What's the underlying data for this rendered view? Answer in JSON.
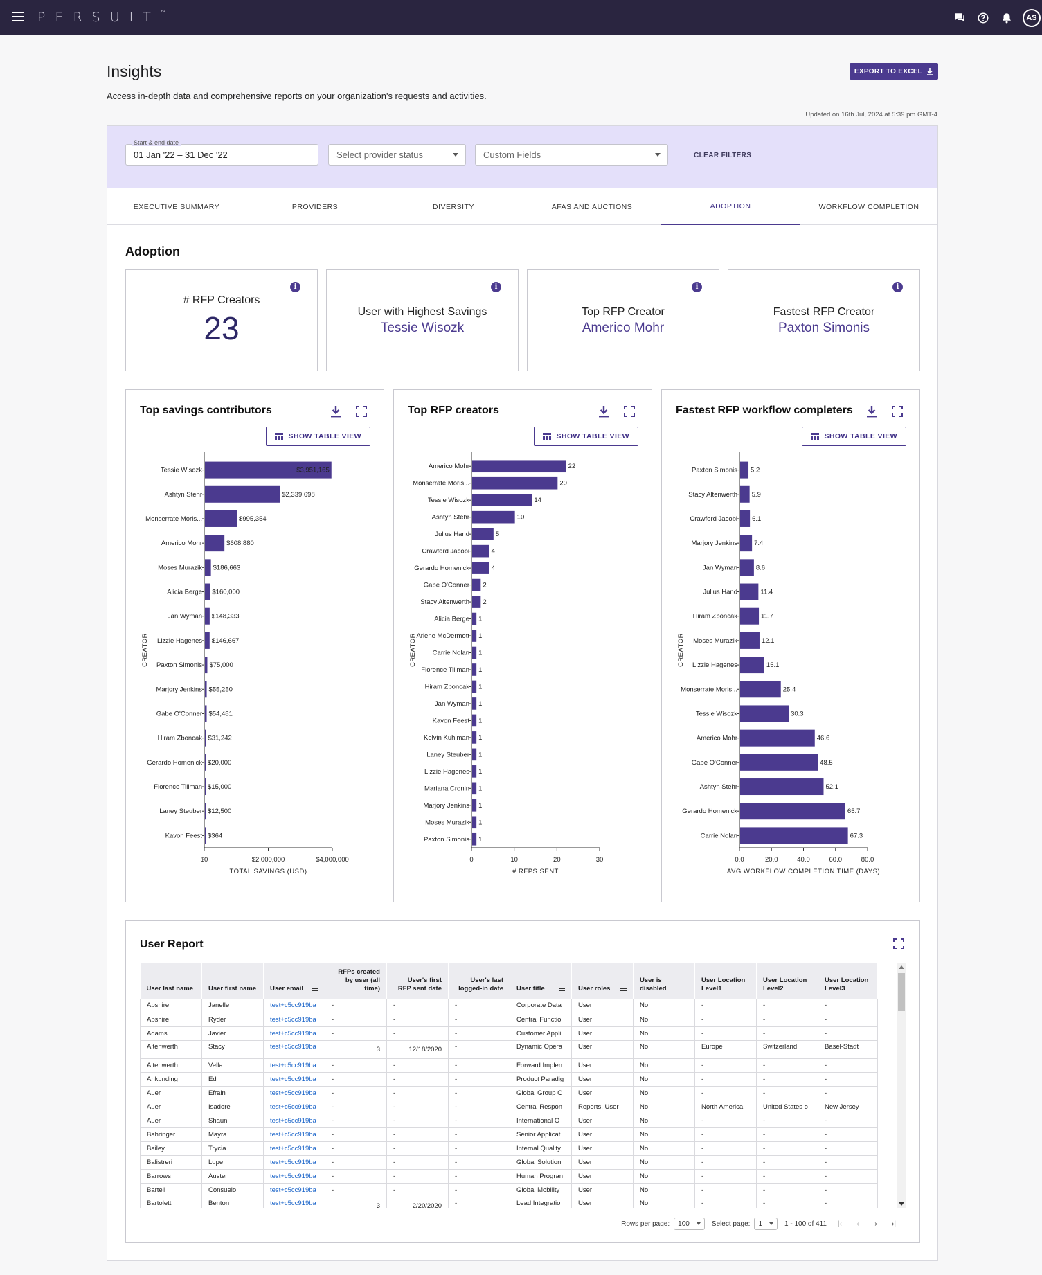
{
  "app": {
    "logo": "PERSUIT",
    "logo_tm": "™",
    "user_initials": "AS"
  },
  "page": {
    "title": "Insights",
    "subtitle": "Access in-depth data and comprehensive reports on your organization's requests and activities.",
    "export_label": "EXPORT TO EXCEL",
    "updated": "Updated on 16th Jul, 2024 at 5:39 pm GMT-4"
  },
  "filters": {
    "date_label": "Start & end date",
    "date_value": "01 Jan '22 – 31 Dec '22",
    "provider_status_placeholder": "Select provider status",
    "custom_fields_placeholder": "Custom Fields",
    "clear_label": "CLEAR FILTERS"
  },
  "tabs": [
    "EXECUTIVE SUMMARY",
    "PROVIDERS",
    "DIVERSITY",
    "AFAS AND AUCTIONS",
    "ADOPTION",
    "WORKFLOW COMPLETION"
  ],
  "active_tab": "ADOPTION",
  "section_title": "Adoption",
  "kpis": {
    "rfp_creators_label": "# RFP Creators",
    "rfp_creators_value": "23",
    "highest_savings_label": "User with Highest Savings",
    "highest_savings_name": "Tessie Wisozk",
    "top_creator_label": "Top RFP Creator",
    "top_creator_name": "Americo Mohr",
    "fastest_creator_label": "Fastest RFP Creator",
    "fastest_creator_name": "Paxton Simonis",
    "info_glyph": "i"
  },
  "show_table_label": "SHOW TABLE VIEW",
  "colors": {
    "accent": "#4b3a8f",
    "nav": "#2a2540",
    "filters_bg": "#e4e0fa"
  },
  "chart_data": [
    {
      "type": "bar",
      "orientation": "horizontal",
      "title": "Top savings contributors",
      "ylabel": "CREATOR",
      "xlabel": "TOTAL SAVINGS (USD)",
      "xlim": [
        0,
        4000000
      ],
      "xticks": [
        "$0",
        "$2,000,000",
        "$4,000,000"
      ],
      "categories": [
        "Tessie Wisozk",
        "Ashtyn Stehr",
        "Monserrate Moris...",
        "Americo Mohr",
        "Moses Murazik",
        "Alicia Berge",
        "Jan Wyman",
        "Lizzie Hagenes",
        "Paxton Simonis",
        "Marjory Jenkins",
        "Gabe O'Conner",
        "Hiram Zboncak",
        "Gerardo Homenick",
        "Florence Tillman",
        "Laney Steuber",
        "Kavon Feest"
      ],
      "values": [
        3951165,
        2339698,
        995354,
        608880,
        186663,
        160000,
        148333,
        146667,
        75000,
        55250,
        54481,
        31242,
        20000,
        15000,
        12500,
        364
      ],
      "labels": [
        "$3,951,165",
        "$2,339,698",
        "$995,354",
        "$608,880",
        "$186,663",
        "$160,000",
        "$148,333",
        "$146,667",
        "$75,000",
        "$55,250",
        "$54,481",
        "$31,242",
        "$20,000",
        "$15,000",
        "$12,500",
        "$364"
      ]
    },
    {
      "type": "bar",
      "orientation": "horizontal",
      "title": "Top RFP creators",
      "ylabel": "CREATOR",
      "xlabel": "# RFPS SENT",
      "xlim": [
        0,
        30
      ],
      "xticks": [
        "0",
        "10",
        "20",
        "30"
      ],
      "categories": [
        "Americo Mohr",
        "Monserrate Moris...",
        "Tessie Wisozk",
        "Ashtyn Stehr",
        "Julius Hand",
        "Crawford Jacobi",
        "Gerardo Homenick",
        "Gabe O'Conner",
        "Stacy Altenwerth",
        "Alicia Berge",
        "Arlene McDermott",
        "Carrie Nolan",
        "Florence Tillman",
        "Hiram Zboncak",
        "Jan Wyman",
        "Kavon Feest",
        "Kelvin Kuhlman",
        "Laney Steuber",
        "Lizzie Hagenes",
        "Mariana Cronin",
        "Marjory Jenkins",
        "Moses Murazik",
        "Paxton Simonis"
      ],
      "values": [
        22,
        20,
        14,
        10,
        5,
        4,
        4,
        2,
        2,
        1,
        1,
        1,
        1,
        1,
        1,
        1,
        1,
        1,
        1,
        1,
        1,
        1,
        1
      ],
      "labels": [
        "22",
        "20",
        "14",
        "10",
        "5",
        "4",
        "4",
        "2",
        "2",
        "1",
        "1",
        "1",
        "1",
        "1",
        "1",
        "1",
        "1",
        "1",
        "1",
        "1",
        "1",
        "1",
        "1"
      ]
    },
    {
      "type": "bar",
      "orientation": "horizontal",
      "title": "Fastest RFP workflow completers",
      "ylabel": "CREATOR",
      "xlabel": "AVG WORKFLOW COMPLETION TIME (DAYS)",
      "xlim": [
        0,
        80
      ],
      "xticks": [
        "0.0",
        "20.0",
        "40.0",
        "60.0",
        "80.0"
      ],
      "categories": [
        "Paxton Simonis",
        "Stacy Altenwerth",
        "Crawford Jacobi",
        "Marjory Jenkins",
        "Jan Wyman",
        "Julius Hand",
        "Hiram Zboncak",
        "Moses Murazik",
        "Lizzie Hagenes",
        "Monserrate Moris...",
        "Tessie Wisozk",
        "Americo Mohr",
        "Gabe O'Conner",
        "Ashtyn Stehr",
        "Gerardo Homenick",
        "Carrie Nolan"
      ],
      "values": [
        5.2,
        5.9,
        6.1,
        7.4,
        8.6,
        11.4,
        11.7,
        12.1,
        15.1,
        25.4,
        30.3,
        46.6,
        48.5,
        52.1,
        65.7,
        67.3
      ],
      "labels": [
        "5.2",
        "5.9",
        "6.1",
        "7.4",
        "8.6",
        "11.4",
        "11.7",
        "12.1",
        "15.1",
        "25.4",
        "30.3",
        "46.6",
        "48.5",
        "52.1",
        "65.7",
        "67.3"
      ]
    }
  ],
  "report": {
    "title": "User Report",
    "columns": [
      "User last name",
      "User first name",
      "User email",
      "RFPs created by user (all time)",
      "User's first RFP sent date",
      "User's last logged-in date",
      "User title",
      "User roles",
      "User is disabled",
      "User Location Level1",
      "User Location Level2",
      "User Location Level3"
    ],
    "rows": [
      [
        "Abshire",
        "Janelle",
        "test+c5cc919ba",
        "-",
        "-",
        "-",
        "Corporate Data",
        "User",
        "No",
        "-",
        "-",
        "-"
      ],
      [
        "Abshire",
        "Ryder",
        "test+c5cc919ba",
        "-",
        "-",
        "-",
        "Central Functio",
        "User",
        "No",
        "-",
        "-",
        "-"
      ],
      [
        "Adams",
        "Javier",
        "test+c5cc919ba",
        "-",
        "-",
        "-",
        "Customer Appli",
        "User",
        "No",
        "-",
        "-",
        "-"
      ],
      [
        "Altenwerth",
        "Stacy",
        "test+c5cc919ba",
        "3",
        "12/18/2020",
        "-",
        "Dynamic Opera",
        "User",
        "No",
        "Europe",
        "Switzerland",
        "Basel-Stadt"
      ],
      [
        "Altenwerth",
        "Vella",
        "test+c5cc919ba",
        "-",
        "-",
        "-",
        "Forward Implen",
        "User",
        "No",
        "-",
        "-",
        "-"
      ],
      [
        "Ankunding",
        "Ed",
        "test+c5cc919ba",
        "-",
        "-",
        "-",
        "Product Paradig",
        "User",
        "No",
        "-",
        "-",
        "-"
      ],
      [
        "Auer",
        "Efrain",
        "test+c5cc919ba",
        "-",
        "-",
        "-",
        "Global Group C",
        "User",
        "No",
        "-",
        "-",
        "-"
      ],
      [
        "Auer",
        "Isadore",
        "test+c5cc919ba",
        "-",
        "-",
        "-",
        "Central Respon",
        "Reports, User",
        "No",
        "North America",
        "United States o",
        "New Jersey"
      ],
      [
        "Auer",
        "Shaun",
        "test+c5cc919ba",
        "-",
        "-",
        "-",
        "International O",
        "User",
        "No",
        "-",
        "-",
        "-"
      ],
      [
        "Bahringer",
        "Mayra",
        "test+c5cc919ba",
        "-",
        "-",
        "-",
        "Senior Applicat",
        "User",
        "No",
        "-",
        "-",
        "-"
      ],
      [
        "Bailey",
        "Trycia",
        "test+c5cc919ba",
        "-",
        "-",
        "-",
        "Internal Quality",
        "User",
        "No",
        "-",
        "-",
        "-"
      ],
      [
        "Balistreri",
        "Lupe",
        "test+c5cc919ba",
        "-",
        "-",
        "-",
        "Global Solution",
        "User",
        "No",
        "-",
        "-",
        "-"
      ],
      [
        "Barrows",
        "Austen",
        "test+c5cc919ba",
        "-",
        "-",
        "-",
        "Human Progran",
        "User",
        "No",
        "-",
        "-",
        "-"
      ],
      [
        "Bartell",
        "Consuelo",
        "test+c5cc919ba",
        "-",
        "-",
        "-",
        "Global Mobility",
        "User",
        "No",
        "-",
        "-",
        "-"
      ],
      [
        "Bartoletti",
        "Benton",
        "test+c5cc919ba",
        "3",
        "2/20/2020",
        "-",
        "Lead Integratio",
        "User",
        "No",
        "-",
        "-",
        "-"
      ]
    ],
    "rows_per_page_label": "Rows per page:",
    "rows_per_page": "100",
    "select_page_label": "Select page:",
    "page": "1",
    "range": "1 - 100 of 411"
  }
}
